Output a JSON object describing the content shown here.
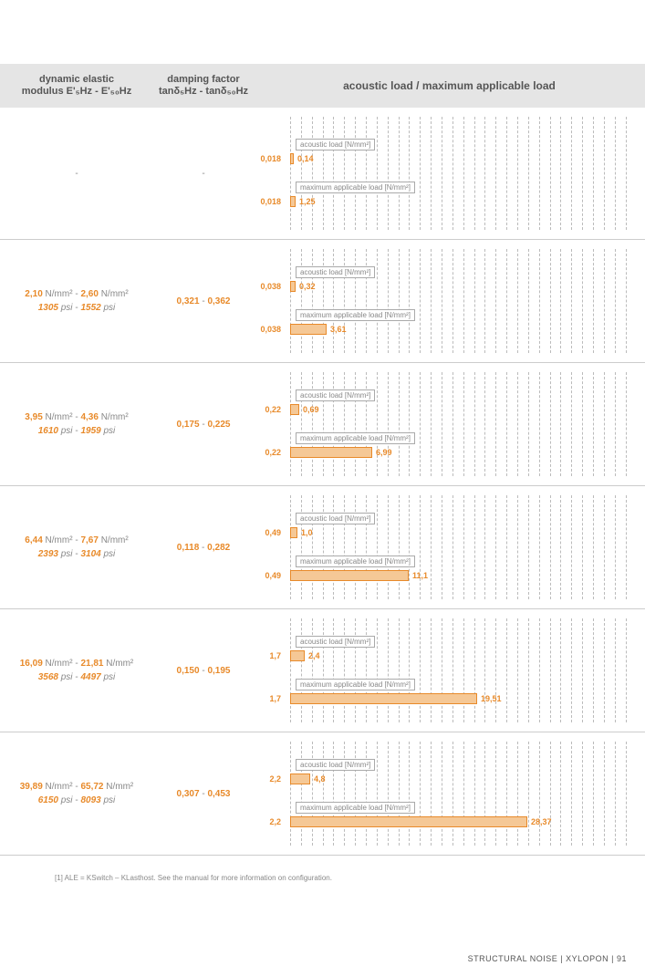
{
  "header": {
    "col1_line1": "dynamic elastic",
    "col1_line2": "modulus E'₅Hz - E'₅₀Hz",
    "col2_line1": "damping factor",
    "col2_line2": "tanδ₅Hz - tanδ₅₀Hz",
    "col3": "acoustic load / maximum applicable load"
  },
  "rows": [
    {
      "modulus": null,
      "modulus_psi": null,
      "damping": null,
      "acoustic_label": "acoustic load [N/mm²]",
      "acoustic_left": "0,018",
      "acoustic_right": "0,14",
      "acoustic_bar_w": 4,
      "max_label": "maximum applicable load [N/mm²]",
      "max_left": "0,018",
      "max_right": "1,25",
      "max_bar_w": 6
    },
    {
      "modulus_a": "2,10",
      "modulus_b": "2,60",
      "modulus_unit": "N/mm²",
      "psi_a": "1305",
      "psi_b": "1552",
      "psi_unit": "psi",
      "damping_a": "0,321",
      "damping_b": "0,362",
      "acoustic_label": "acoustic load [N/mm²]",
      "acoustic_left": "0,038",
      "acoustic_right": "0,32",
      "acoustic_bar_w": 6,
      "max_label": "maximum applicable load [N/mm²]",
      "max_left": "0,038",
      "max_right": "3,61",
      "max_bar_w": 40
    },
    {
      "modulus_a": "3,95",
      "modulus_b": "4,36",
      "modulus_unit": "N/mm²",
      "psi_a": "1610",
      "psi_b": "1959",
      "psi_unit": "psi",
      "damping_a": "0,175",
      "damping_b": "0,225",
      "acoustic_label": "acoustic load [N/mm²]",
      "acoustic_left": "0,22",
      "acoustic_right": "0,69",
      "acoustic_bar_w": 10,
      "max_label": "maximum applicable load [N/mm²]",
      "max_left": "0,22",
      "max_right": "6,99",
      "max_bar_w": 90
    },
    {
      "modulus_a": "6,44",
      "modulus_b": "7,67",
      "modulus_unit": "N/mm²",
      "psi_a": "2393",
      "psi_b": "3104",
      "psi_unit": "psi",
      "damping_a": "0,118",
      "damping_b": "0,282",
      "acoustic_label": "acoustic load [N/mm²]",
      "acoustic_left": "0,49",
      "acoustic_right": "1,0",
      "acoustic_bar_w": 8,
      "max_label": "maximum applicable load [N/mm²]",
      "max_left": "0,49",
      "max_right": "11,1",
      "max_bar_w": 130
    },
    {
      "modulus_a": "16,09",
      "modulus_b": "21,81",
      "modulus_unit": "N/mm²",
      "psi_a": "3568",
      "psi_b": "4497",
      "psi_unit": "psi",
      "damping_a": "0,150",
      "damping_b": "0,195",
      "acoustic_label": "acoustic load [N/mm²]",
      "acoustic_left": "1,7",
      "acoustic_right": "2,4",
      "acoustic_bar_w": 16,
      "max_label": "maximum applicable load [N/mm²]",
      "max_left": "1,7",
      "max_right": "19,51",
      "max_bar_w": 205
    },
    {
      "modulus_a": "39,89",
      "modulus_b": "65,72",
      "modulus_unit": "N/mm²",
      "psi_a": "6150",
      "psi_b": "8093",
      "psi_unit": "psi",
      "damping_a": "0,307",
      "damping_b": "0,453",
      "acoustic_label": "acoustic load [N/mm²]",
      "acoustic_left": "2,2",
      "acoustic_right": "4,8",
      "acoustic_bar_w": 22,
      "max_label": "maximum applicable load [N/mm²]",
      "max_left": "2,2",
      "max_right": "28,37",
      "max_bar_w": 260
    }
  ],
  "gridlines": 32,
  "footnote": "[1] ALE = KSwitch – KLasthost. See the manual for more information on configuration.",
  "footer": "STRUCTURAL NOISE  |  XYLOPON  |  91"
}
